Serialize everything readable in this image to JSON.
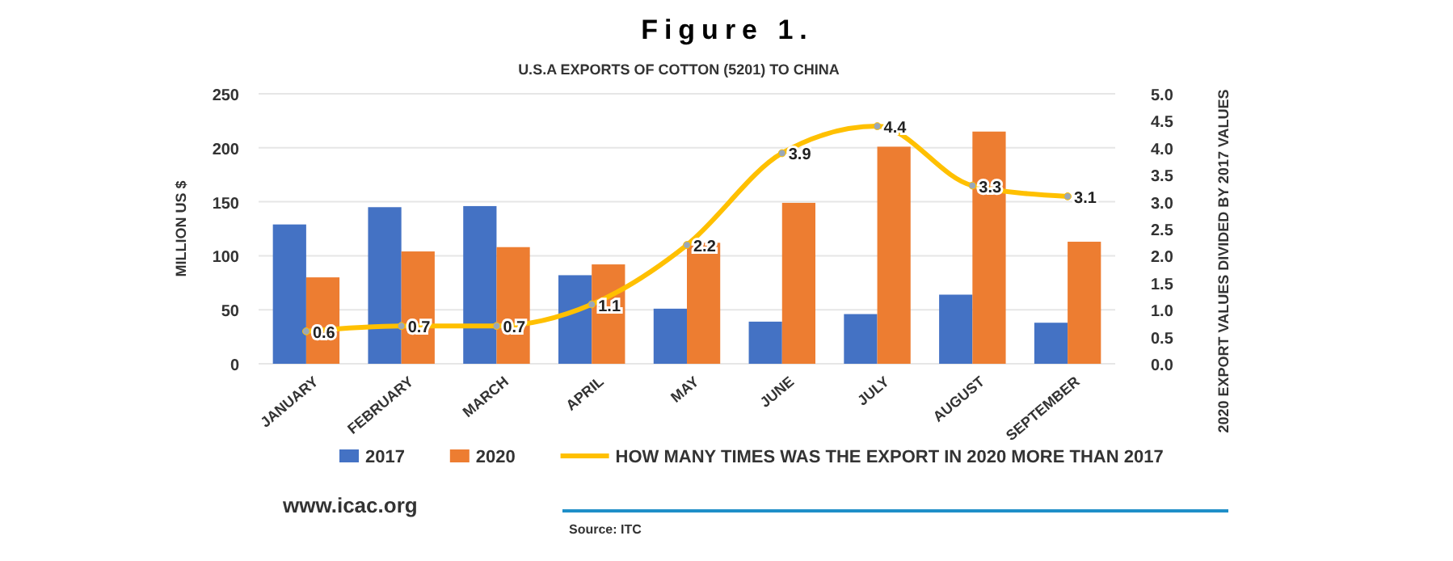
{
  "chart_data": {
    "type": "bar",
    "title": "Figure 1.",
    "subtitle": "U.S.A EXPORTS OF COTTON (5201) TO CHINA",
    "ylabel": "MILLION US $",
    "y2label": "2020 EXPORT VALUES DIVIDED BY 2017 VALUES",
    "categories": [
      "JANUARY",
      "FEBRUARY",
      "MARCH",
      "APRIL",
      "MAY",
      "JUNE",
      "JULY",
      "AUGUST",
      "SEPTEMBER"
    ],
    "series": [
      {
        "name": "2017",
        "color": "#4472c4",
        "values": [
          129,
          145,
          146,
          82,
          51,
          39,
          46,
          64,
          38
        ]
      },
      {
        "name": "2020",
        "color": "#ed7d31",
        "values": [
          80,
          104,
          108,
          92,
          112,
          149,
          201,
          215,
          113
        ]
      },
      {
        "name": "HOW MANY TIMES WAS THE EXPORT IN 2020 MORE THAN 2017",
        "type": "line",
        "axis": "y2",
        "color": "#ffc000",
        "marker": "circle",
        "values": [
          0.6,
          0.7,
          0.7,
          1.1,
          2.2,
          3.9,
          4.4,
          3.3,
          3.1
        ],
        "value_labels": [
          "0.6",
          "0.7",
          "0.7",
          "1.1",
          "2.2",
          "3.9",
          "4.4",
          "3.3",
          "3.1"
        ]
      }
    ],
    "ylim": [
      0,
      250
    ],
    "yticks": [
      0,
      50,
      100,
      150,
      200,
      250
    ],
    "y2lim": [
      0,
      5
    ],
    "y2ticks": [
      {
        "value": 0,
        "label": "0.0"
      },
      {
        "value": 0.5,
        "label": "0.5"
      },
      {
        "value": 1,
        "label": "1.0"
      },
      {
        "value": 1.5,
        "label": "1.5"
      },
      {
        "value": 2,
        "label": "2.0"
      },
      {
        "value": 2.5,
        "label": "2.5"
      },
      {
        "value": 3,
        "label": "3.0"
      },
      {
        "value": 3.5,
        "label": "3.5"
      },
      {
        "value": 4,
        "label": "4.0"
      },
      {
        "value": 4.5,
        "label": "4.5"
      },
      {
        "value": 5,
        "label": "5.0"
      }
    ],
    "grid": "y",
    "legend": "bottom",
    "annotations": [
      "www.icac.org",
      "Source: ITC"
    ]
  }
}
